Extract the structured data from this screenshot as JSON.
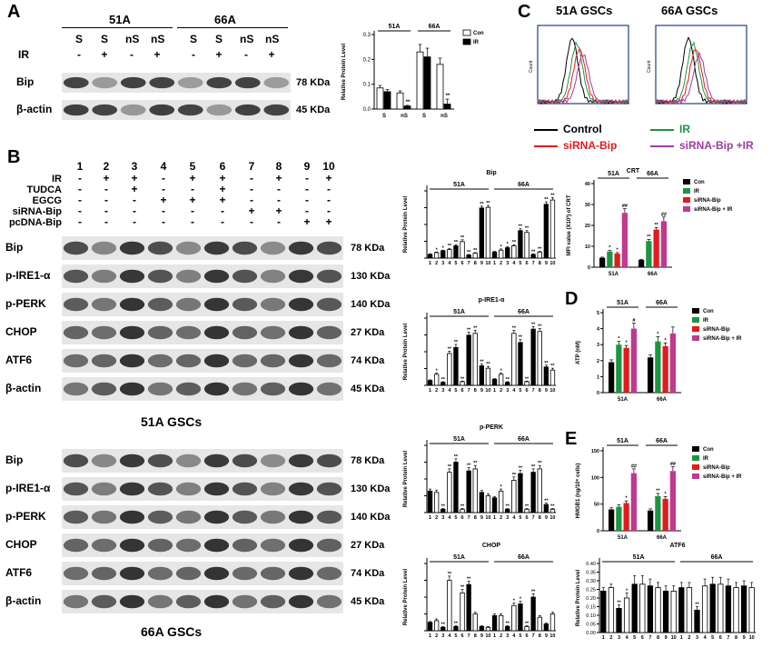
{
  "panels": {
    "A": "A",
    "B": "B",
    "C": "C",
    "D": "D",
    "E": "E"
  },
  "panelA": {
    "group1": "51A",
    "group2": "66A",
    "row_ir": "IR",
    "lanes": [
      {
        "s": "S",
        "ir": "-"
      },
      {
        "s": "S",
        "ir": "+"
      },
      {
        "s": "nS",
        "ir": "-"
      },
      {
        "s": "nS",
        "ir": "+"
      },
      {
        "s": "S",
        "ir": "-"
      },
      {
        "s": "S",
        "ir": "+"
      },
      {
        "s": "nS",
        "ir": "-"
      },
      {
        "s": "nS",
        "ir": "+"
      }
    ],
    "bands": [
      {
        "name": "Bip",
        "kda": "78 KDa"
      },
      {
        "name": "β-actin",
        "kda": "45 KDa"
      }
    ]
  },
  "panelB": {
    "lane_numbers": [
      "1",
      "2",
      "3",
      "4",
      "5",
      "6",
      "7",
      "8",
      "9",
      "10"
    ],
    "treatments": [
      {
        "name": "IR",
        "signs": [
          "-",
          "+",
          "+",
          "-",
          "+",
          "+",
          "-",
          "+",
          "-",
          "+"
        ]
      },
      {
        "name": "TUDCA",
        "signs": [
          "-",
          "-",
          "+",
          "-",
          "-",
          "+",
          "-",
          "-",
          "-",
          "-"
        ]
      },
      {
        "name": "EGCG",
        "signs": [
          "-",
          "-",
          "-",
          "+",
          "+",
          "+",
          "-",
          "-",
          "-",
          "-"
        ]
      },
      {
        "name": "siRNA-Bip",
        "signs": [
          "-",
          "-",
          "-",
          "-",
          "-",
          "-",
          "+",
          "+",
          "-",
          "-"
        ]
      },
      {
        "name": "pcDNA-Bip",
        "signs": [
          "-",
          "-",
          "-",
          "-",
          "-",
          "-",
          "-",
          "-",
          "+",
          "+"
        ]
      }
    ],
    "blot1": {
      "caption": "51A  GSCs",
      "bands": [
        {
          "name": "Bip",
          "kda": "78 KDa"
        },
        {
          "name": "p-IRE1-α",
          "kda": "130 KDa"
        },
        {
          "name": "p-PERK",
          "kda": "140 KDa"
        },
        {
          "name": "CHOP",
          "kda": "27 KDa"
        },
        {
          "name": "ATF6",
          "kda": "74 KDa"
        },
        {
          "name": "β-actin",
          "kda": "45 KDa"
        }
      ]
    },
    "blot2": {
      "caption": "66A  GSCs",
      "bands": [
        {
          "name": "Bip",
          "kda": "78 KDa"
        },
        {
          "name": "p-IRE1-α",
          "kda": "130 KDa"
        },
        {
          "name": "p-PERK",
          "kda": "140 KDa"
        },
        {
          "name": "CHOP",
          "kda": "27 KDa"
        },
        {
          "name": "ATF6",
          "kda": "74 KDa"
        },
        {
          "name": "β-actin",
          "kda": "45 KDa"
        }
      ]
    }
  },
  "panelC": {
    "title1": "51A GSCs",
    "title2": "66A GSCs",
    "legend": [
      {
        "name": "Control",
        "color": "#000000"
      },
      {
        "name": "IR",
        "color": "#1a9641"
      },
      {
        "name": "siRNA-Bip",
        "color": "#e41a1c"
      },
      {
        "name": "siRNA-Bip +IR",
        "color": "#9e3d9e"
      }
    ]
  },
  "chart_data": [
    {
      "id": "A-bar",
      "type": "bar",
      "ylabel": "Relative Protein Level",
      "ylim": [
        0,
        0.3
      ],
      "yticks": [
        "0.0",
        "0.1",
        "0.2",
        "0.3"
      ],
      "groups": [
        "51A",
        "66A"
      ],
      "categories": [
        "S",
        "nS",
        "S",
        "nS"
      ],
      "legend": [
        "Con",
        "IR"
      ],
      "series": [
        {
          "name": "Con",
          "values": [
            0.085,
            0.065,
            0.23,
            0.18
          ],
          "err": [
            0.01,
            0.008,
            0.03,
            0.025
          ],
          "color": "#ffffff"
        },
        {
          "name": "IR",
          "values": [
            0.07,
            0.012,
            0.21,
            0.02
          ],
          "err": [
            0.008,
            0.003,
            0.035,
            0.02
          ],
          "color": "#000000"
        }
      ],
      "sig": [
        "",
        "**",
        "",
        "**"
      ]
    },
    {
      "id": "B-Bip",
      "type": "bar",
      "title": "Bip",
      "ylabel": "Relative Protein Level",
      "ylim": [
        0,
        1.1
      ],
      "groups": [
        "51A",
        "66A"
      ],
      "x": [
        "1",
        "2",
        "3",
        "4",
        "5",
        "6",
        "7",
        "8",
        "9",
        "10"
      ],
      "values": [
        [
          0.06,
          0.09,
          0.12,
          0.14,
          0.2,
          0.27,
          0.05,
          0.08,
          0.82,
          0.83
        ],
        [
          0.1,
          0.13,
          0.17,
          0.2,
          0.45,
          0.42,
          0.06,
          0.1,
          0.88,
          0.95
        ]
      ],
      "err": [
        [
          0.01,
          0.01,
          0.01,
          0.02,
          0.02,
          0.03,
          0.01,
          0.01,
          0.03,
          0.03
        ],
        [
          0.01,
          0.02,
          0.02,
          0.02,
          0.03,
          0.03,
          0.01,
          0.01,
          0.04,
          0.04
        ]
      ],
      "sig": [
        [
          "",
          "*",
          "*",
          "**",
          "**",
          "**",
          "**",
          "**",
          "**",
          "**"
        ],
        [
          "",
          "*",
          "*",
          "**",
          "**",
          "**",
          "**",
          "**",
          "**",
          "**"
        ]
      ]
    },
    {
      "id": "B-IRE1",
      "type": "bar",
      "title": "p-IRE1-α",
      "ylabel": "Relative Protein Level",
      "ylim": [
        0,
        1.1
      ],
      "groups": [
        "51A",
        "66A"
      ],
      "x": [
        "1",
        "2",
        "3",
        "4",
        "5",
        "6",
        "7",
        "8",
        "9",
        "10"
      ],
      "values": [
        [
          0.08,
          0.18,
          0.05,
          0.52,
          0.62,
          0.06,
          0.82,
          0.85,
          0.32,
          0.28
        ],
        [
          0.1,
          0.18,
          0.05,
          0.85,
          0.7,
          0.06,
          0.92,
          0.88,
          0.3,
          0.25
        ]
      ],
      "err": [
        [
          0.01,
          0.02,
          0.01,
          0.04,
          0.05,
          0.01,
          0.05,
          0.05,
          0.03,
          0.03
        ],
        [
          0.01,
          0.02,
          0.01,
          0.05,
          0.05,
          0.01,
          0.04,
          0.05,
          0.03,
          0.03
        ]
      ],
      "sig": [
        [
          "",
          "*",
          "**",
          "**",
          "**",
          "**",
          "**",
          "**",
          "**",
          "**"
        ],
        [
          "",
          "*",
          "**",
          "**",
          "**",
          "**",
          "**",
          "**",
          "**",
          "**"
        ]
      ]
    },
    {
      "id": "B-PERK",
      "type": "bar",
      "title": "p-PERK",
      "ylabel": "Relative Protein Level",
      "ylim": [
        0,
        1.0
      ],
      "groups": [
        "51A",
        "66A"
      ],
      "x": [
        "1",
        "2",
        "3",
        "4",
        "5",
        "6",
        "7",
        "8",
        "9",
        "10"
      ],
      "values": [
        [
          0.32,
          0.3,
          0.05,
          0.6,
          0.75,
          0.05,
          0.62,
          0.65,
          0.3,
          0.25
        ],
        [
          0.22,
          0.32,
          0.05,
          0.48,
          0.58,
          0.05,
          0.6,
          0.65,
          0.12,
          0.05
        ]
      ],
      "err": [
        [
          0.03,
          0.03,
          0.01,
          0.05,
          0.05,
          0.01,
          0.05,
          0.05,
          0.03,
          0.03
        ],
        [
          0.02,
          0.03,
          0.01,
          0.05,
          0.05,
          0.01,
          0.05,
          0.05,
          0.02,
          0.01
        ]
      ],
      "sig": [
        [
          "",
          "",
          "**",
          "**",
          "**",
          "**",
          "**",
          "**",
          "",
          ""
        ],
        [
          "",
          "*",
          "**",
          "**",
          "**",
          "**",
          "**",
          "**",
          "**",
          "**"
        ]
      ]
    },
    {
      "id": "B-CHOP",
      "type": "bar",
      "title": "CHOP",
      "ylabel": "Relative Protein Level",
      "ylim": [
        0,
        0.8
      ],
      "groups": [
        "51A",
        "66A"
      ],
      "x": [
        "1",
        "2",
        "3",
        "4",
        "5",
        "6",
        "7",
        "8",
        "9",
        "10"
      ],
      "values": [
        [
          0.1,
          0.12,
          0.04,
          0.6,
          0.05,
          0.45,
          0.55,
          0.2,
          0.05,
          0.04
        ],
        [
          0.18,
          0.18,
          0.05,
          0.3,
          0.32,
          0.05,
          0.4,
          0.16,
          0.08,
          0.2
        ]
      ],
      "err": [
        [
          0.01,
          0.02,
          0.01,
          0.05,
          0.01,
          0.04,
          0.04,
          0.02,
          0.01,
          0.01
        ],
        [
          0.02,
          0.02,
          0.01,
          0.03,
          0.03,
          0.01,
          0.04,
          0.02,
          0.01,
          0.02
        ]
      ],
      "sig": [
        [
          "",
          "",
          "**",
          "**",
          "**",
          "**",
          "**",
          "",
          "",
          ""
        ],
        [
          "",
          "",
          "**",
          "*",
          "*",
          "**",
          "**",
          "",
          "",
          ""
        ]
      ]
    },
    {
      "id": "C-CRT",
      "type": "bar",
      "title": "CRT",
      "ylabel": "MFI value (X10³) of CRT",
      "ylim": [
        0,
        40
      ],
      "yticks": [
        "0",
        "10",
        "20",
        "30",
        "40"
      ],
      "categories": [
        "51A",
        "66A"
      ],
      "series": [
        {
          "name": "Con",
          "values": [
            4.5,
            3.5
          ],
          "err": [
            0.3,
            0.3
          ],
          "color": "#000000"
        },
        {
          "name": "IR",
          "values": [
            7.5,
            12.5
          ],
          "err": [
            0.5,
            0.8
          ],
          "color": "#1a9641"
        },
        {
          "name": "siRNA-Bip",
          "values": [
            6.5,
            18
          ],
          "err": [
            0.5,
            1
          ],
          "color": "#e41a1c"
        },
        {
          "name": "siRNA-Bip + IR",
          "values": [
            26,
            22
          ],
          "err": [
            2,
            2
          ],
          "color": "#c0398f"
        }
      ],
      "sig": [
        [
          "",
          "*",
          "*",
          "##"
        ],
        [
          "",
          "**",
          "**",
          "##"
        ]
      ]
    },
    {
      "id": "D-ATP",
      "type": "bar",
      "ylabel": "ATP (nM)",
      "ylim": [
        0,
        5
      ],
      "yticks": [
        "0",
        "1",
        "2",
        "3",
        "4",
        "5"
      ],
      "categories": [
        "51A",
        "66A"
      ],
      "series": [
        {
          "name": "Con",
          "values": [
            1.9,
            2.2
          ],
          "err": [
            0.15,
            0.15
          ],
          "color": "#000000"
        },
        {
          "name": "IR",
          "values": [
            3.0,
            3.2
          ],
          "err": [
            0.2,
            0.3
          ],
          "color": "#1a9641"
        },
        {
          "name": "siRNA-Bip",
          "values": [
            2.8,
            2.9
          ],
          "err": [
            0.15,
            0.2
          ],
          "color": "#e41a1c"
        },
        {
          "name": "siRNA-Bip + IR",
          "values": [
            4.0,
            3.7
          ],
          "err": [
            0.35,
            0.4
          ],
          "color": "#c0398f"
        }
      ],
      "sig": [
        [
          "",
          "*",
          "*",
          "#"
        ],
        [
          "",
          "*",
          "*",
          ""
        ]
      ]
    },
    {
      "id": "E-HMGB1",
      "type": "bar",
      "ylabel": "HMGB1 (ng/10⁶ cells)",
      "ylim": [
        0,
        150
      ],
      "yticks": [
        "0",
        "50",
        "100",
        "150"
      ],
      "categories": [
        "51A",
        "66A"
      ],
      "series": [
        {
          "name": "Con",
          "values": [
            40,
            38
          ],
          "err": [
            3,
            3
          ],
          "color": "#000000"
        },
        {
          "name": "IR",
          "values": [
            45,
            65
          ],
          "err": [
            4,
            5
          ],
          "color": "#1a9641"
        },
        {
          "name": "siRNA-Bip",
          "values": [
            52,
            60
          ],
          "err": [
            4,
            4
          ],
          "color": "#e41a1c"
        },
        {
          "name": "siRNA-Bip + IR",
          "values": [
            108,
            112
          ],
          "err": [
            8,
            8
          ],
          "color": "#c0398f"
        }
      ],
      "sig": [
        [
          "",
          "",
          "*",
          "##"
        ],
        [
          "",
          "**",
          "*",
          "##"
        ]
      ]
    },
    {
      "id": "ATF6-bar",
      "type": "bar",
      "title": "ATF6",
      "ylabel": "Relative Protein Level",
      "ylim": [
        0,
        0.4
      ],
      "yticks": [
        "0.00",
        "0.05",
        "0.10",
        "0.15",
        "0.20",
        "0.25",
        "0.30",
        "0.35",
        "0.40"
      ],
      "groups": [
        "51A",
        "66A"
      ],
      "x": [
        "1",
        "2",
        "3",
        "4",
        "5",
        "6",
        "7",
        "8",
        "9",
        "10"
      ],
      "values": [
        [
          0.24,
          0.26,
          0.14,
          0.2,
          0.28,
          0.28,
          0.27,
          0.26,
          0.24,
          0.24
        ],
        [
          0.26,
          0.26,
          0.13,
          0.27,
          0.28,
          0.28,
          0.27,
          0.26,
          0.27,
          0.26
        ]
      ],
      "err": [
        [
          0.02,
          0.02,
          0.02,
          0.03,
          0.05,
          0.05,
          0.04,
          0.03,
          0.03,
          0.03
        ],
        [
          0.03,
          0.03,
          0.02,
          0.04,
          0.04,
          0.04,
          0.04,
          0.03,
          0.03,
          0.03
        ]
      ],
      "sig": [
        [
          "",
          "",
          "**",
          "*",
          "",
          "",
          "",
          "",
          "",
          ""
        ],
        [
          "",
          "",
          "**",
          "",
          "",
          "",
          "",
          "",
          "",
          ""
        ]
      ]
    }
  ]
}
